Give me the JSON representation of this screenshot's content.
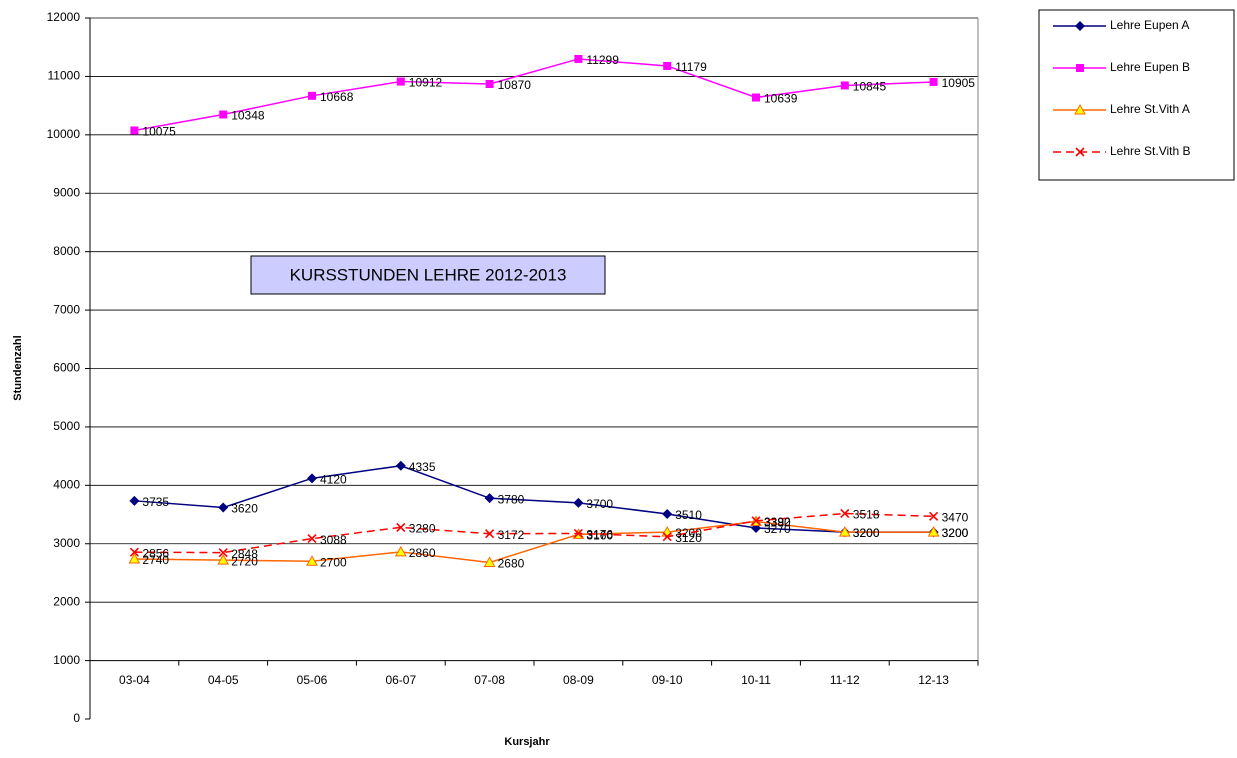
{
  "chart_data": {
    "type": "line",
    "title": "KURSSTUNDEN LEHRE 2012-2013",
    "x_label": "Kursjahr",
    "y_label": "Stundenzahl",
    "categories": [
      "03-04",
      "04-05",
      "05-06",
      "06-07",
      "07-08",
      "08-09",
      "09-10",
      "10-11",
      "11-12",
      "12-13"
    ],
    "series": [
      {
        "name": "Lehre Eupen A",
        "color": "#000080",
        "marker": "diamond",
        "dash": false,
        "values": [
          3735,
          3620,
          4120,
          4335,
          3780,
          3700,
          3510,
          3270,
          3200,
          3200
        ]
      },
      {
        "name": "Lehre Eupen B",
        "color": "#ff00ff",
        "marker": "square",
        "dash": false,
        "values": [
          10075,
          10348,
          10668,
          10912,
          10870,
          11299,
          11179,
          10639,
          10845,
          10905
        ]
      },
      {
        "name": "Lehre St.Vith A",
        "color": "#ff6600",
        "marker": "triangle",
        "dash": false,
        "values": [
          2740,
          2720,
          2700,
          2860,
          2680,
          3160,
          3200,
          3380,
          3200,
          3200
        ]
      },
      {
        "name": "Lehre St.Vith B",
        "color": "#ff0000",
        "marker": "cross",
        "dash": true,
        "values": [
          2856,
          2848,
          3088,
          3280,
          3172,
          3176,
          3120,
          3392,
          3518,
          3470
        ]
      }
    ],
    "ylim": [
      0,
      12000
    ],
    "yticks": [
      0,
      1000,
      2000,
      3000,
      4000,
      5000,
      6000,
      7000,
      8000,
      9000,
      10000,
      11000,
      12000
    ],
    "x_axis_crosses": 1000,
    "grid": true,
    "legend": "right"
  }
}
